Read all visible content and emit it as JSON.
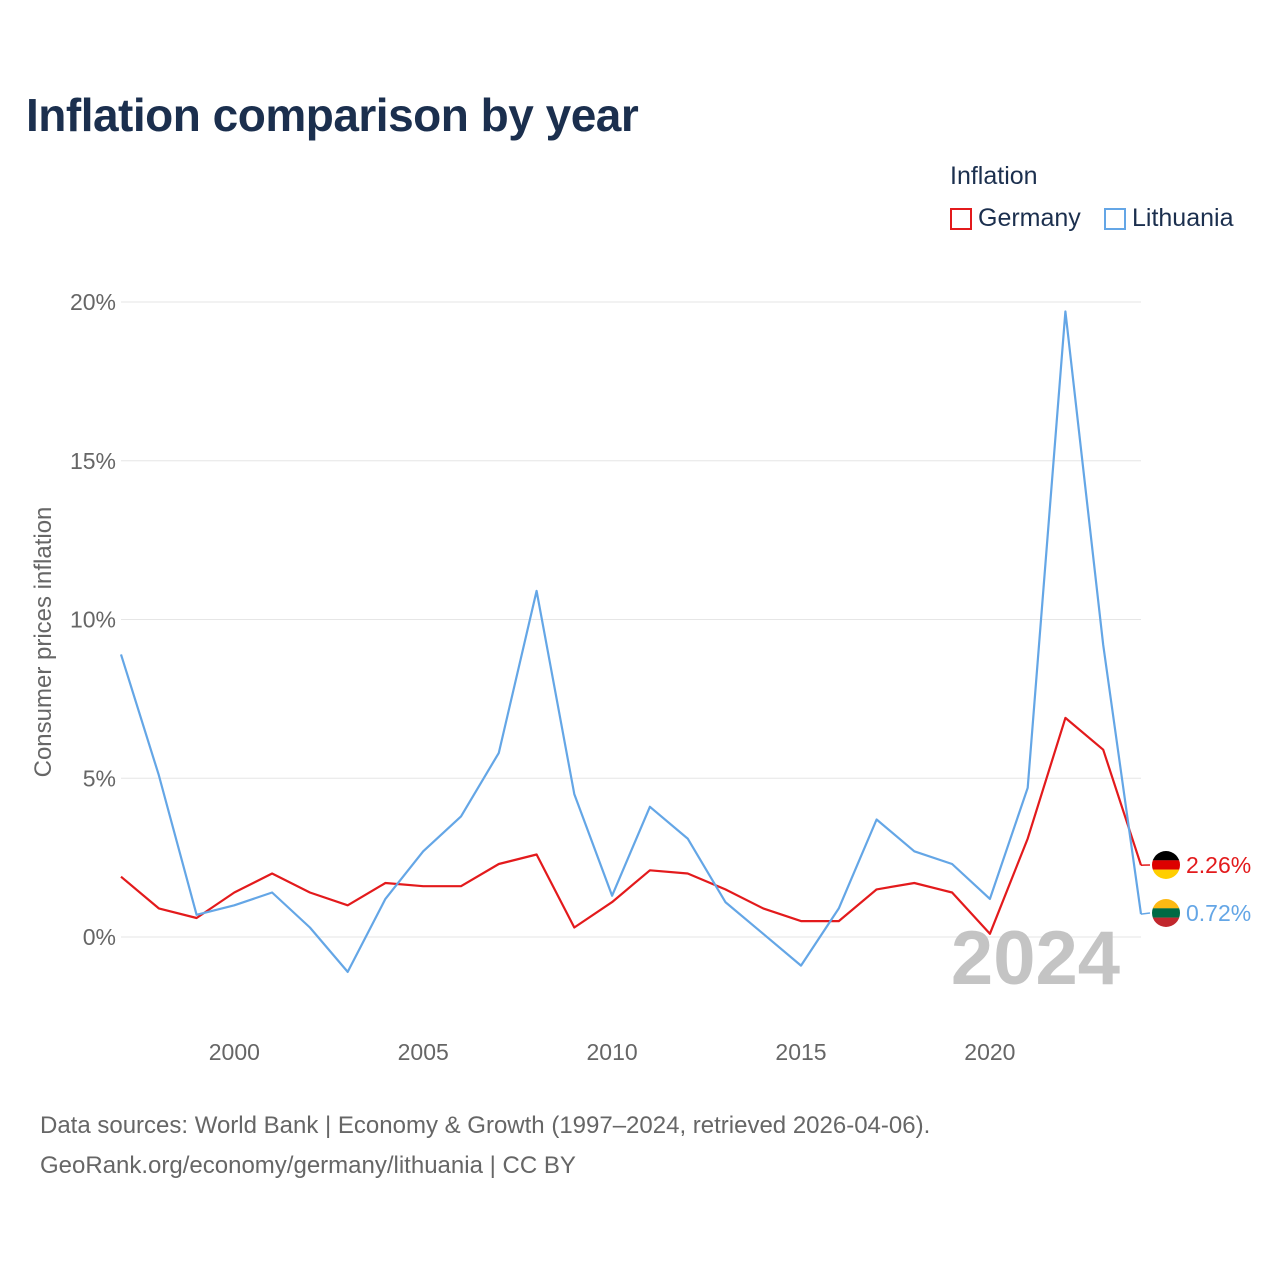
{
  "title": "Inflation comparison by year",
  "legend": {
    "title": "Inflation",
    "items": [
      {
        "name": "Germany",
        "color": "#e31a1c"
      },
      {
        "name": "Lithuania",
        "color": "#64a6e6"
      }
    ]
  },
  "chart_data": {
    "type": "line",
    "title": "Inflation comparison by year",
    "xlabel": "",
    "ylabel": "Consumer prices inflation",
    "x": [
      1997,
      1998,
      1999,
      2000,
      2001,
      2002,
      2003,
      2004,
      2005,
      2006,
      2007,
      2008,
      2009,
      2010,
      2011,
      2012,
      2013,
      2014,
      2015,
      2016,
      2017,
      2018,
      2019,
      2020,
      2021,
      2022,
      2023,
      2024
    ],
    "xticks": [
      2000,
      2005,
      2010,
      2015,
      2020
    ],
    "xtick_labels": [
      "2000",
      "2005",
      "2010",
      "2015",
      "2020"
    ],
    "yticks": [
      0,
      5,
      10,
      15,
      20
    ],
    "ytick_labels": [
      "0%",
      "5%",
      "10%",
      "15%",
      "20%"
    ],
    "xlim": [
      1997,
      2024
    ],
    "ylim": [
      -2.5,
      21.5
    ],
    "series": [
      {
        "name": "Germany",
        "color": "#e31a1c",
        "values": [
          1.9,
          0.9,
          0.6,
          1.4,
          2.0,
          1.4,
          1.0,
          1.7,
          1.6,
          1.6,
          2.3,
          2.6,
          0.3,
          1.1,
          2.1,
          2.0,
          1.5,
          0.9,
          0.5,
          0.5,
          1.5,
          1.7,
          1.4,
          0.1,
          3.1,
          6.9,
          5.9,
          2.26
        ]
      },
      {
        "name": "Lithuania",
        "color": "#64a6e6",
        "values": [
          8.9,
          5.1,
          0.7,
          1.0,
          1.4,
          0.3,
          -1.1,
          1.2,
          2.7,
          3.8,
          5.8,
          10.9,
          4.5,
          1.3,
          4.1,
          3.1,
          1.1,
          0.1,
          -0.9,
          0.9,
          3.7,
          2.7,
          2.3,
          1.2,
          4.7,
          19.7,
          9.2,
          0.72
        ]
      }
    ],
    "end_labels": [
      "2.26%",
      "0.72%"
    ],
    "watermark_year": "2024",
    "flags": {
      "germany": [
        "#000000",
        "#dd0000",
        "#ffce00"
      ],
      "lithuania": [
        "#fdb913",
        "#006a44",
        "#c1272d"
      ]
    }
  },
  "footer": {
    "line1": "Data sources: World Bank | Economy & Growth (1997–2024, retrieved 2026-04-06).",
    "line2": "GeoRank.org/economy/germany/lithuania | CC BY"
  }
}
